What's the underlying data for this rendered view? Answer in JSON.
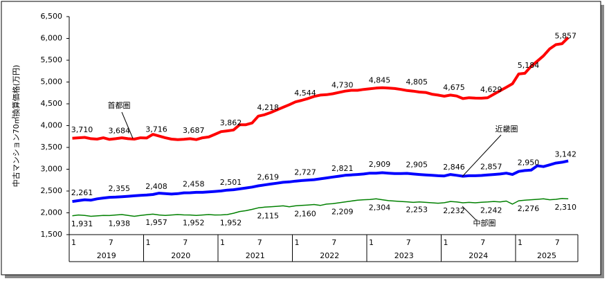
{
  "chart_data": {
    "type": "line",
    "y_label": "中古マンション70㎡換算価格(万円)",
    "ylim": [
      1500,
      6500
    ],
    "yticks": [
      {
        "value": 1500,
        "label": "1,500"
      },
      {
        "value": 2000,
        "label": "2,000"
      },
      {
        "value": 2500,
        "label": "2,500"
      },
      {
        "value": 3000,
        "label": "3,000"
      },
      {
        "value": 3500,
        "label": "3,500"
      },
      {
        "value": 4000,
        "label": "4,000"
      },
      {
        "value": 4500,
        "label": "4,500"
      },
      {
        "value": 5000,
        "label": "5,000"
      },
      {
        "value": 5500,
        "label": "5,500"
      },
      {
        "value": 6000,
        "label": "6,000"
      },
      {
        "value": 6500,
        "label": "6,500"
      }
    ],
    "categories": [
      "1",
      null,
      null,
      null,
      null,
      null,
      "7",
      null,
      null,
      null,
      null,
      null,
      "1",
      null,
      null,
      null,
      null,
      null,
      "7",
      null,
      null,
      null,
      null,
      null,
      "1",
      null,
      null,
      null,
      null,
      null,
      "7",
      null,
      null,
      null,
      null,
      null,
      "1",
      null,
      null,
      null,
      null,
      null,
      "7",
      null,
      null,
      null,
      null,
      null,
      "1",
      null,
      null,
      null,
      null,
      null,
      "7",
      null,
      null,
      null,
      null,
      null,
      "1",
      null,
      null,
      null,
      null,
      null,
      "7",
      null,
      null,
      null,
      null,
      null,
      "1",
      null,
      null,
      null,
      null,
      null,
      "7",
      null,
      null
    ],
    "years": [
      "2019",
      "2020",
      "2021",
      "2022",
      "2023",
      "2024",
      "2025"
    ],
    "series": [
      {
        "name": "首都圏",
        "color": "#ff0000",
        "values": [
          3710,
          3720,
          3730,
          3700,
          3690,
          3720,
          3684,
          3700,
          3720,
          3700,
          3690,
          3720,
          3716,
          3800,
          3760,
          3720,
          3690,
          3680,
          3687,
          3700,
          3680,
          3720,
          3740,
          3800,
          3862,
          3880,
          3900,
          4020,
          4020,
          4060,
          4218,
          4250,
          4300,
          4360,
          4420,
          4480,
          4544,
          4580,
          4620,
          4670,
          4700,
          4710,
          4730,
          4760,
          4790,
          4810,
          4810,
          4830,
          4845,
          4860,
          4870,
          4860,
          4850,
          4830,
          4805,
          4790,
          4770,
          4760,
          4720,
          4700,
          4675,
          4700,
          4680,
          4620,
          4640,
          4630,
          4629,
          4640,
          4720,
          4800,
          4880,
          4960,
          5184,
          5200,
          5360,
          5480,
          5600,
          5760,
          5857,
          5880,
          6020
        ],
        "value_labels": [
          "3,710",
          null,
          null,
          null,
          null,
          null,
          "3,684",
          null,
          null,
          null,
          null,
          null,
          "3,716",
          null,
          null,
          null,
          null,
          null,
          "3,687",
          null,
          null,
          null,
          null,
          null,
          "3,862",
          null,
          null,
          null,
          null,
          null,
          "4,218",
          null,
          null,
          null,
          null,
          null,
          "4,544",
          null,
          null,
          null,
          null,
          null,
          "4,730",
          null,
          null,
          null,
          null,
          null,
          "4,845",
          null,
          null,
          null,
          null,
          null,
          "4,805",
          null,
          null,
          null,
          null,
          null,
          "4,675",
          null,
          null,
          null,
          null,
          null,
          "4,629",
          null,
          null,
          null,
          null,
          null,
          "5,184",
          null,
          null,
          null,
          null,
          null,
          "5,857",
          null,
          null
        ]
      },
      {
        "name": "近畿圏",
        "color": "#0000ff",
        "values": [
          2261,
          2280,
          2300,
          2290,
          2320,
          2340,
          2355,
          2360,
          2370,
          2380,
          2390,
          2400,
          2408,
          2420,
          2450,
          2440,
          2430,
          2440,
          2458,
          2460,
          2470,
          2470,
          2480,
          2490,
          2501,
          2520,
          2530,
          2550,
          2570,
          2590,
          2619,
          2640,
          2660,
          2680,
          2700,
          2710,
          2727,
          2740,
          2750,
          2760,
          2780,
          2800,
          2821,
          2840,
          2860,
          2870,
          2880,
          2890,
          2909,
          2910,
          2920,
          2910,
          2900,
          2900,
          2905,
          2890,
          2880,
          2870,
          2860,
          2850,
          2846,
          2880,
          2860,
          2840,
          2850,
          2850,
          2857,
          2870,
          2880,
          2890,
          2910,
          2880,
          2950,
          2970,
          2980,
          3080,
          3060,
          3100,
          3142,
          3160,
          3190
        ],
        "value_labels": [
          "2,261",
          null,
          null,
          null,
          null,
          null,
          "2,355",
          null,
          null,
          null,
          null,
          null,
          "2,408",
          null,
          null,
          null,
          null,
          null,
          "2,458",
          null,
          null,
          null,
          null,
          null,
          "2,501",
          null,
          null,
          null,
          null,
          null,
          "2,619",
          null,
          null,
          null,
          null,
          null,
          "2,727",
          null,
          null,
          null,
          null,
          null,
          "2,821",
          null,
          null,
          null,
          null,
          null,
          "2,909",
          null,
          null,
          null,
          null,
          null,
          "2,905",
          null,
          null,
          null,
          null,
          null,
          "2,846",
          null,
          null,
          null,
          null,
          null,
          "2,857",
          null,
          null,
          null,
          null,
          null,
          "2,950",
          null,
          null,
          null,
          null,
          null,
          "3,142",
          null,
          null
        ]
      },
      {
        "name": "中部圏",
        "color": "#008000",
        "values": [
          1931,
          1950,
          1940,
          1920,
          1930,
          1940,
          1938,
          1950,
          1960,
          1940,
          1920,
          1940,
          1957,
          1970,
          1950,
          1940,
          1950,
          1960,
          1952,
          1950,
          1940,
          1950,
          1960,
          1950,
          1952,
          1960,
          1990,
          2030,
          2050,
          2080,
          2115,
          2130,
          2140,
          2150,
          2160,
          2140,
          2160,
          2170,
          2180,
          2190,
          2170,
          2200,
          2209,
          2230,
          2250,
          2270,
          2290,
          2300,
          2304,
          2320,
          2300,
          2280,
          2270,
          2260,
          2253,
          2240,
          2250,
          2240,
          2230,
          2220,
          2232,
          2260,
          2250,
          2230,
          2240,
          2230,
          2242,
          2250,
          2260,
          2250,
          2270,
          2200,
          2276,
          2290,
          2300,
          2310,
          2320,
          2300,
          2310,
          2330,
          2320
        ],
        "value_labels": [
          "1,931",
          null,
          null,
          null,
          null,
          null,
          "1,938",
          null,
          null,
          null,
          null,
          null,
          "1,957",
          null,
          null,
          null,
          null,
          null,
          "1,952",
          null,
          null,
          null,
          null,
          null,
          "1,952",
          null,
          null,
          null,
          null,
          null,
          "2,115",
          null,
          null,
          null,
          null,
          null,
          "2,160",
          null,
          null,
          null,
          null,
          null,
          "2,209",
          null,
          null,
          null,
          null,
          null,
          "2,304",
          null,
          null,
          null,
          null,
          null,
          "2,253",
          null,
          null,
          null,
          null,
          null,
          "2,232",
          null,
          null,
          null,
          null,
          null,
          "2,242",
          null,
          null,
          null,
          null,
          null,
          "2,276",
          null,
          null,
          null,
          null,
          null,
          "2,310",
          null,
          null
        ]
      }
    ]
  }
}
